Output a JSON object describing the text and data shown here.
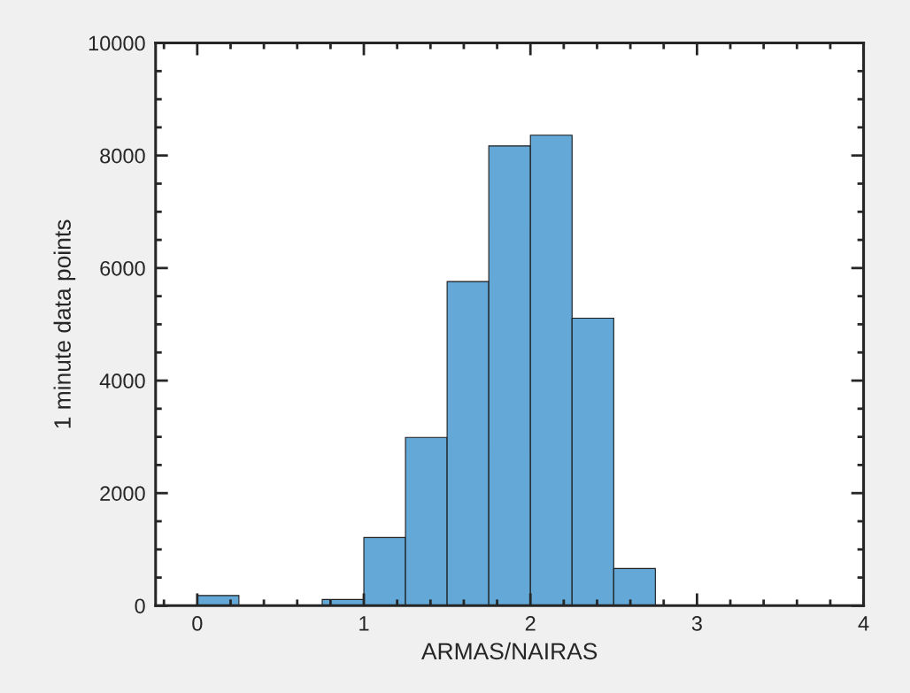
{
  "chart_data": {
    "type": "histogram",
    "xlabel": "ARMAS/NAIRAS",
    "ylabel": "1 minute data points",
    "bins": [
      0,
      0.25,
      0.5,
      0.75,
      1,
      1.25,
      1.5,
      1.75,
      2,
      2.25,
      2.5,
      2.75
    ],
    "values": [
      180,
      0,
      0,
      110,
      1210,
      2990,
      5760,
      8170,
      8360,
      5110,
      660
    ],
    "color": "#63a8d6",
    "xlim": [
      -0.25,
      4
    ],
    "xticks": [
      0,
      1,
      2,
      3,
      4
    ],
    "ylim": [
      0,
      10000
    ],
    "yticks": [
      0,
      2000,
      4000,
      6000,
      8000,
      10000
    ],
    "grid": false
  }
}
